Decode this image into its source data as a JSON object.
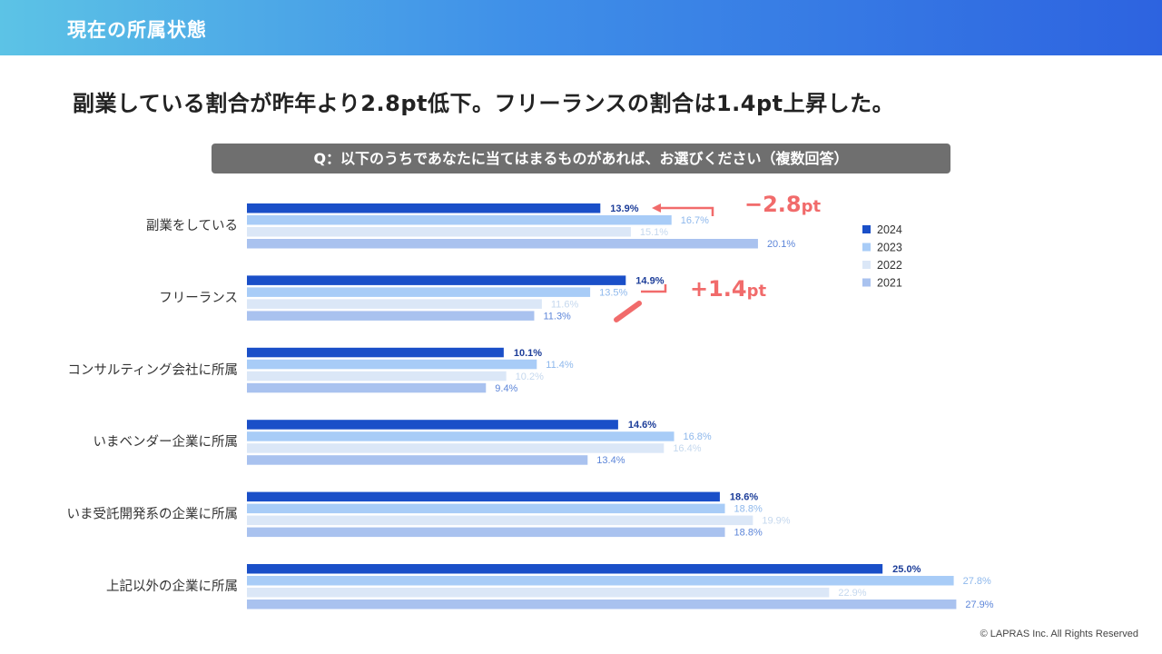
{
  "header": {
    "title": "現在の所属状態"
  },
  "headline": "副業している割合が昨年より2.8pt低下。フリーランスの割合は1.4pt上昇した。",
  "question": "Q：以下のうちであなたに当てはまるものがあれば、お選びください（複数回答）",
  "annotations": {
    "side_job": {
      "value": "−2.8",
      "unit": "pt"
    },
    "freelance": {
      "value": "+1.4",
      "unit": "pt"
    }
  },
  "colors": {
    "2024": "#1a4fc8",
    "2023": "#a8ccf7",
    "2022": "#dbe7f7",
    "2021": "#a9c2ef",
    "label_2024": "#1c3d99",
    "label_2023": "#8eb8ec",
    "label_2022": "#c5d8ee",
    "label_2021": "#5d86d9",
    "accent": "#f16b6b"
  },
  "chart_data": {
    "type": "bar",
    "orientation": "horizontal",
    "title": "Q：以下のうちであなたに当てはまるものがあれば、お選びください（複数回答）",
    "categories": [
      "副業をしている",
      "フリーランス",
      "コンサルティング会社に所属",
      "いまベンダー企業に所属",
      "いま受託開発系の企業に所属",
      "上記以外の企業に所属"
    ],
    "series": [
      {
        "name": "2024",
        "values": [
          13.9,
          14.9,
          10.1,
          14.6,
          18.6,
          25.0
        ],
        "labels": [
          "13.9%",
          "14.9%",
          "10.1%",
          "14.6%",
          "18.6%",
          "25.0%"
        ]
      },
      {
        "name": "2023",
        "values": [
          16.7,
          13.5,
          11.4,
          16.8,
          18.8,
          27.8
        ],
        "labels": [
          "16.7%",
          "13.5%",
          "11.4%",
          "16.8%",
          "18.8%",
          "27.8%"
        ]
      },
      {
        "name": "2022",
        "values": [
          15.1,
          11.6,
          10.2,
          16.4,
          19.9,
          22.9
        ],
        "labels": [
          "15.1%",
          "11.6%",
          "10.2%",
          "16.4%",
          "19.9%",
          "22.9%"
        ]
      },
      {
        "name": "2021",
        "values": [
          20.1,
          11.3,
          9.4,
          13.4,
          18.8,
          27.9
        ],
        "labels": [
          "20.1%",
          "11.3%",
          "9.4%",
          "13.4%",
          "18.8%",
          "27.9%"
        ]
      }
    ],
    "legend": [
      "2024",
      "2023",
      "2022",
      "2021"
    ],
    "legend_position": "right",
    "xlim": [
      0,
      28.6
    ],
    "grid": false,
    "unit": "%"
  },
  "footer": {
    "copyright": "© LAPRAS Inc. All Rights Reserved"
  }
}
